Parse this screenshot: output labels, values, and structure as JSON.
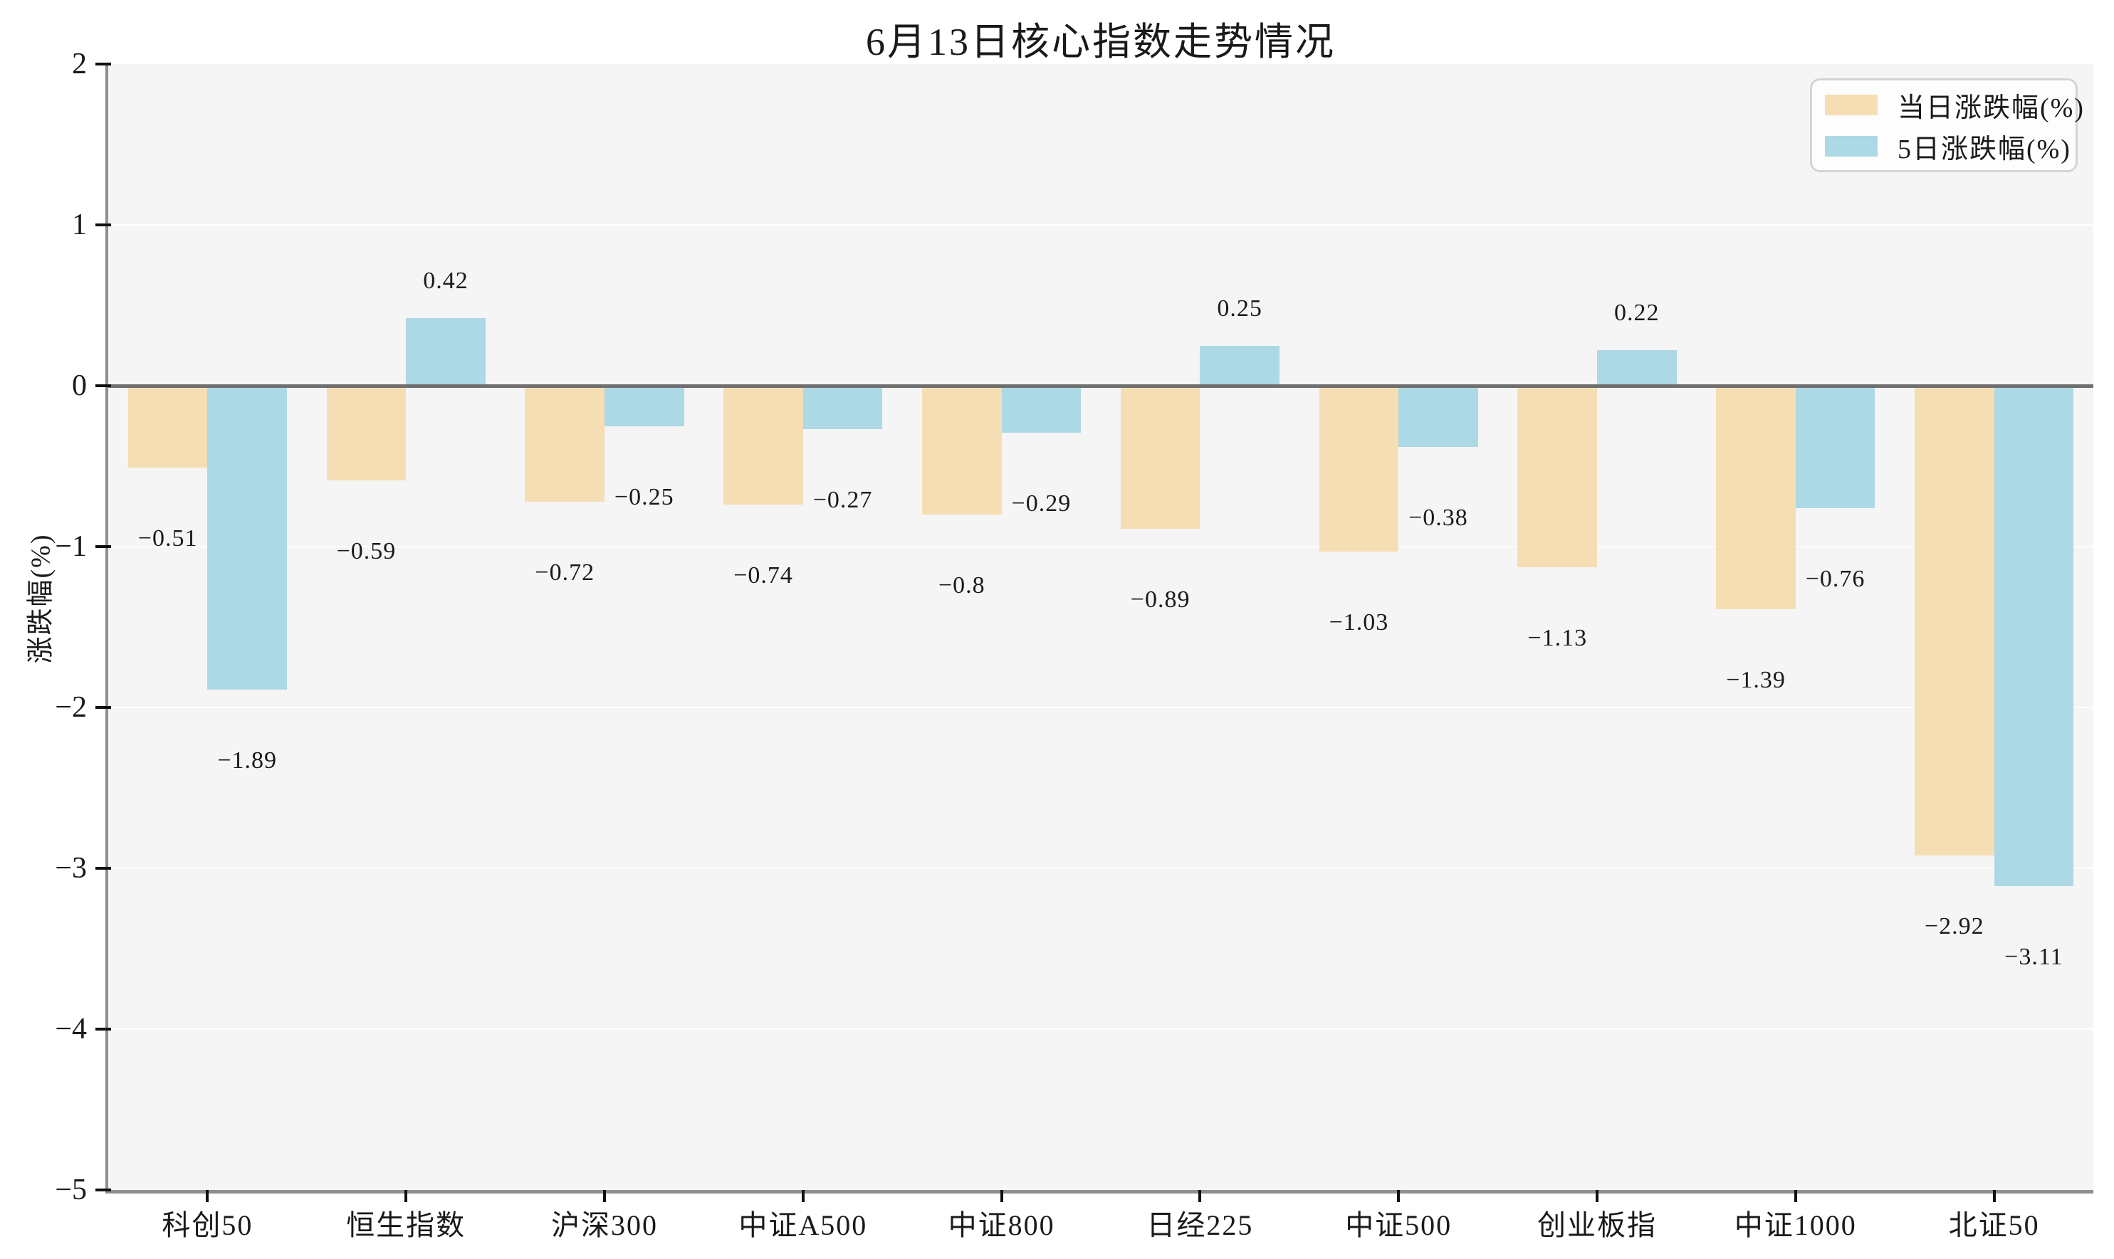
{
  "title": "6月13日核心指数走势情况",
  "y_axis": {
    "label": "涨跌幅(%)",
    "tick_values": [
      2,
      1,
      0,
      -1,
      -2,
      -3,
      -4,
      -5
    ]
  },
  "legend": {
    "daily_label": "当日涨跌幅(%)",
    "five_day_label": "5日涨跌幅(%)"
  },
  "colors": {
    "daily_bar": "#F5DEB3",
    "five_day_bar": "#ADD8E6",
    "plot_background": "#f5f5f5",
    "gridline": "#ffffff",
    "zero_line": "#6f6f6f"
  },
  "chart_data": {
    "type": "bar",
    "title": "6月13日核心指数走势情况",
    "xlabel": "",
    "ylabel": "涨跌幅(%)",
    "ylim": [
      -5,
      2
    ],
    "grid": true,
    "legend_position": "top-right",
    "categories": [
      "科创50",
      "恒生指数",
      "沪深300",
      "中证A500",
      "中证800",
      "日经225",
      "中证500",
      "创业板指",
      "中证1000",
      "北证50"
    ],
    "series": [
      {
        "name": "当日涨跌幅(%)",
        "color": "#F5DEB3",
        "values": [
          -0.51,
          -0.59,
          -0.72,
          -0.74,
          -0.8,
          -0.89,
          -1.03,
          -1.13,
          -1.39,
          -2.92
        ],
        "labels": [
          "-0.51",
          "-0.59",
          "-0.72",
          "-0.74",
          "-0.8",
          "-0.89",
          "-1.03",
          "-1.13",
          "-1.39",
          "-2.92"
        ]
      },
      {
        "name": "5日涨跌幅(%)",
        "color": "#ADD8E6",
        "values": [
          -1.89,
          0.42,
          -0.25,
          -0.27,
          -0.29,
          0.25,
          -0.38,
          0.22,
          -0.76,
          -3.11
        ],
        "labels": [
          "-1.89",
          "0.42",
          "-0.25",
          "-0.27",
          "-0.29",
          "0.25",
          "-0.38",
          "0.22",
          "-0.76",
          "-3.11"
        ]
      }
    ]
  }
}
